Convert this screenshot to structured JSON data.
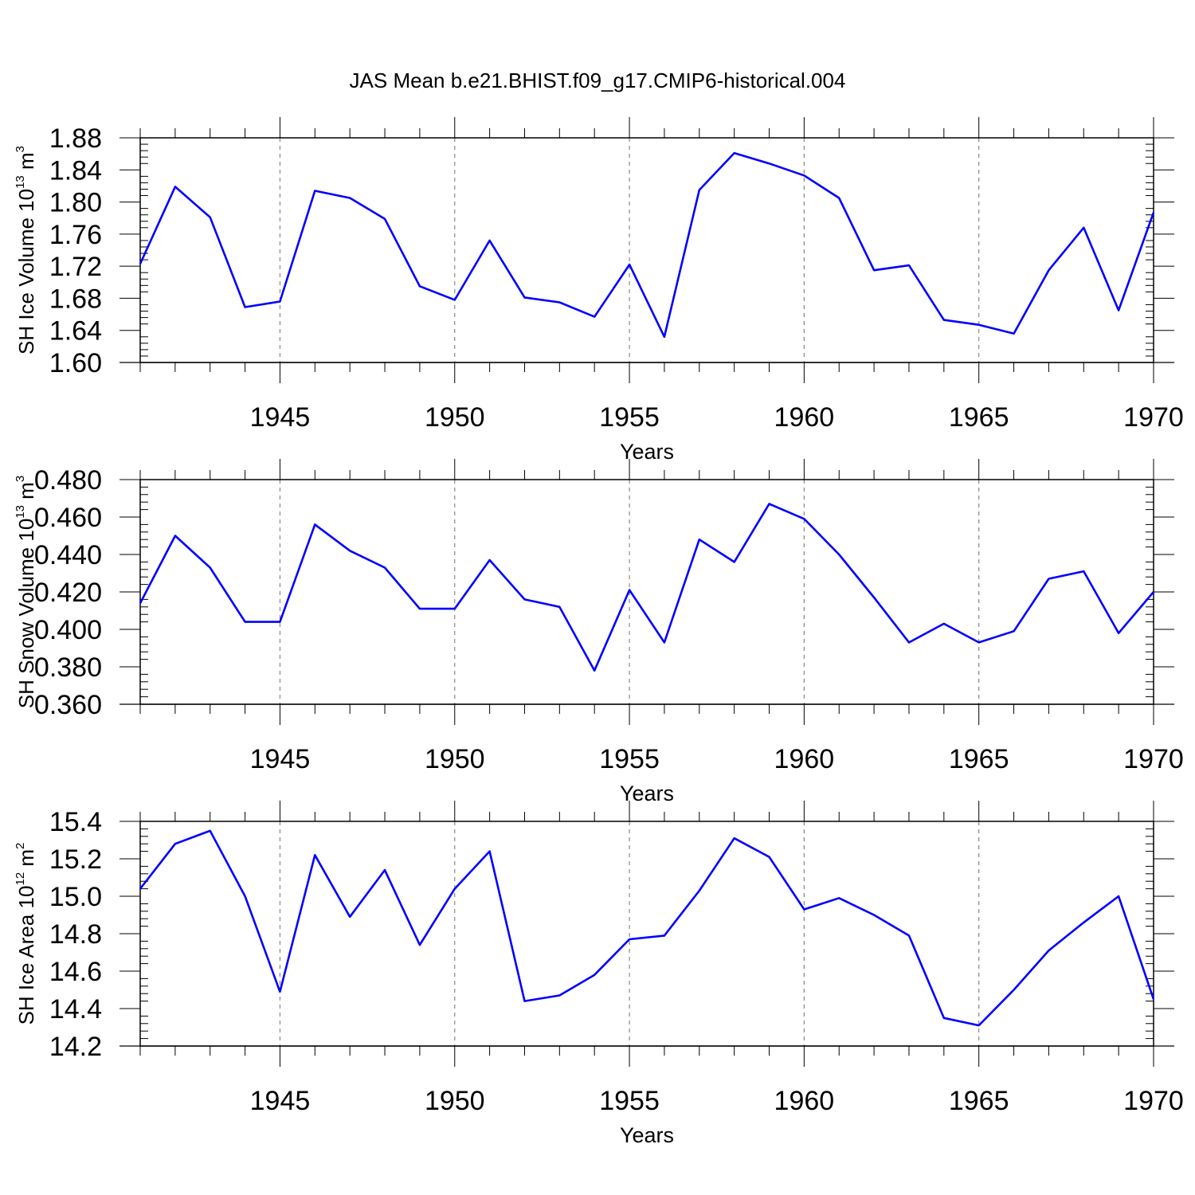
{
  "figure": {
    "title": "JAS Mean b.e21.BHIST.f09_g17.CMIP6-historical.004"
  },
  "colors": {
    "line": "#0000ff",
    "axis": "#000000",
    "gridline": "#888888",
    "background": "#ffffff"
  },
  "chart_data": [
    {
      "type": "line",
      "xlabel": "Years",
      "ylabel": {
        "text": "SH Ice Volume 10",
        "exp": "13",
        "unit": " m",
        "unit_exp": "3"
      },
      "xlim": [
        1941,
        1970
      ],
      "ylim": [
        1.6,
        1.88
      ],
      "yticks": [
        1.6,
        1.64,
        1.68,
        1.72,
        1.76,
        1.8,
        1.84,
        1.88
      ],
      "ytick_labels": [
        "1.60",
        "1.64",
        "1.68",
        "1.72",
        "1.76",
        "1.80",
        "1.84",
        "1.88"
      ],
      "xticks": [
        1945,
        1950,
        1955,
        1960,
        1965,
        1970
      ],
      "xtick_labels": [
        "1945",
        "1950",
        "1955",
        "1960",
        "1965",
        "1970"
      ],
      "grid": "vertical dashed at major ticks",
      "series": [
        {
          "name": "SH Ice Volume",
          "x": [
            1941,
            1942,
            1943,
            1944,
            1945,
            1946,
            1947,
            1948,
            1949,
            1950,
            1951,
            1952,
            1953,
            1954,
            1955,
            1956,
            1957,
            1958,
            1959,
            1960,
            1961,
            1962,
            1963,
            1964,
            1965,
            1966,
            1967,
            1968,
            1969,
            1970
          ],
          "values": [
            1.723,
            1.819,
            1.781,
            1.669,
            1.676,
            1.814,
            1.805,
            1.779,
            1.695,
            1.678,
            1.752,
            1.681,
            1.675,
            1.657,
            1.722,
            1.632,
            1.815,
            1.861,
            1.848,
            1.833,
            1.805,
            1.715,
            1.721,
            1.653,
            1.647,
            1.636,
            1.715,
            1.768,
            1.665,
            1.787
          ]
        }
      ]
    },
    {
      "type": "line",
      "xlabel": "Years",
      "ylabel": {
        "text": "SH Snow Volume 10",
        "exp": "13",
        "unit": " m",
        "unit_exp": "3"
      },
      "xlim": [
        1941,
        1970
      ],
      "ylim": [
        0.36,
        0.48
      ],
      "yticks": [
        0.36,
        0.38,
        0.4,
        0.42,
        0.44,
        0.46,
        0.48
      ],
      "ytick_labels": [
        "0.360",
        "0.380",
        "0.400",
        "0.420",
        "0.440",
        "0.460",
        "0.480"
      ],
      "xticks": [
        1945,
        1950,
        1955,
        1960,
        1965,
        1970
      ],
      "xtick_labels": [
        "1945",
        "1950",
        "1955",
        "1960",
        "1965",
        "1970"
      ],
      "grid": "vertical dashed at major ticks",
      "series": [
        {
          "name": "SH Snow Volume",
          "x": [
            1941,
            1942,
            1943,
            1944,
            1945,
            1946,
            1947,
            1948,
            1949,
            1950,
            1951,
            1952,
            1953,
            1954,
            1955,
            1956,
            1957,
            1958,
            1959,
            1960,
            1961,
            1962,
            1963,
            1964,
            1965,
            1966,
            1967,
            1968,
            1969,
            1970
          ],
          "values": [
            0.414,
            0.45,
            0.433,
            0.404,
            0.404,
            0.456,
            0.442,
            0.433,
            0.411,
            0.411,
            0.437,
            0.416,
            0.412,
            0.378,
            0.421,
            0.393,
            0.448,
            0.436,
            0.467,
            0.459,
            0.44,
            0.417,
            0.393,
            0.403,
            0.393,
            0.399,
            0.427,
            0.431,
            0.398,
            0.42
          ]
        }
      ]
    },
    {
      "type": "line",
      "xlabel": "Years",
      "ylabel": {
        "text": "SH Ice Area 10",
        "exp": "12",
        "unit": " m",
        "unit_exp": "2"
      },
      "xlim": [
        1941,
        1970
      ],
      "ylim": [
        14.2,
        15.4
      ],
      "yticks": [
        14.2,
        14.4,
        14.6,
        14.8,
        15.0,
        15.2,
        15.4
      ],
      "ytick_labels": [
        "14.2",
        "14.4",
        "14.6",
        "14.8",
        "15.0",
        "15.2",
        "15.4"
      ],
      "xticks": [
        1945,
        1950,
        1955,
        1960,
        1965,
        1970
      ],
      "xtick_labels": [
        "1945",
        "1950",
        "1955",
        "1960",
        "1965",
        "1970"
      ],
      "grid": "vertical dashed at major ticks",
      "series": [
        {
          "name": "SH Ice Area",
          "x": [
            1941,
            1942,
            1943,
            1944,
            1945,
            1946,
            1947,
            1948,
            1949,
            1950,
            1951,
            1952,
            1953,
            1954,
            1955,
            1956,
            1957,
            1958,
            1959,
            1960,
            1961,
            1962,
            1963,
            1964,
            1965,
            1966,
            1967,
            1968,
            1969,
            1970
          ],
          "values": [
            15.04,
            15.28,
            15.35,
            15.0,
            14.49,
            15.22,
            14.89,
            15.14,
            14.74,
            15.04,
            15.24,
            14.44,
            14.47,
            14.58,
            14.77,
            14.79,
            15.03,
            15.31,
            15.21,
            14.93,
            14.99,
            14.9,
            14.79,
            14.35,
            14.31,
            14.5,
            14.71,
            14.86,
            15.0,
            14.45
          ]
        }
      ]
    }
  ]
}
